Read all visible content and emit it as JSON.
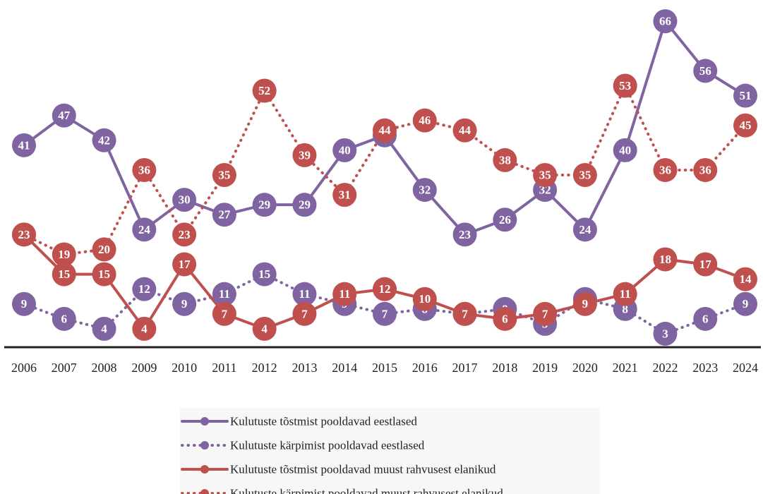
{
  "chart_data": {
    "type": "line",
    "categories": [
      "2006",
      "2007",
      "2008",
      "2009",
      "2010",
      "2011",
      "2012",
      "2013",
      "2014",
      "2015",
      "2016",
      "2017",
      "2018",
      "2019",
      "2020",
      "2021",
      "2022",
      "2023",
      "2024"
    ],
    "ylim": [
      0,
      70
    ],
    "legend": "bottom",
    "series": [
      {
        "name": "Kulutuste tõstmist pooldavad eestlased",
        "color": "#8064a2",
        "dotted": false,
        "values": [
          41,
          47,
          42,
          24,
          30,
          27,
          29,
          29,
          40,
          43,
          32,
          23,
          26,
          32,
          24,
          40,
          66,
          56,
          51
        ]
      },
      {
        "name": "Kulutuste kärpimist pooldavad eestlased",
        "color": "#8064a2",
        "dotted": true,
        "values": [
          9,
          6,
          4,
          12,
          9,
          11,
          15,
          11,
          9,
          7,
          8,
          7,
          8,
          5,
          10,
          8,
          3,
          6,
          9
        ]
      },
      {
        "name": "Kulutuste tõstmist pooldavad muust rahvusest elanikud",
        "color": "#c0504d",
        "dotted": false,
        "values": [
          23,
          15,
          15,
          4,
          17,
          7,
          4,
          7,
          11,
          12,
          10,
          7,
          6,
          7,
          9,
          11,
          18,
          17,
          14
        ]
      },
      {
        "name": "Kulutuste kärpimist pooldavad muust rahvusest elanikud",
        "color": "#c0504d",
        "dotted": true,
        "values": [
          23,
          19,
          20,
          36,
          23,
          35,
          52,
          39,
          31,
          44,
          46,
          44,
          38,
          35,
          35,
          53,
          36,
          36,
          45
        ]
      }
    ]
  }
}
